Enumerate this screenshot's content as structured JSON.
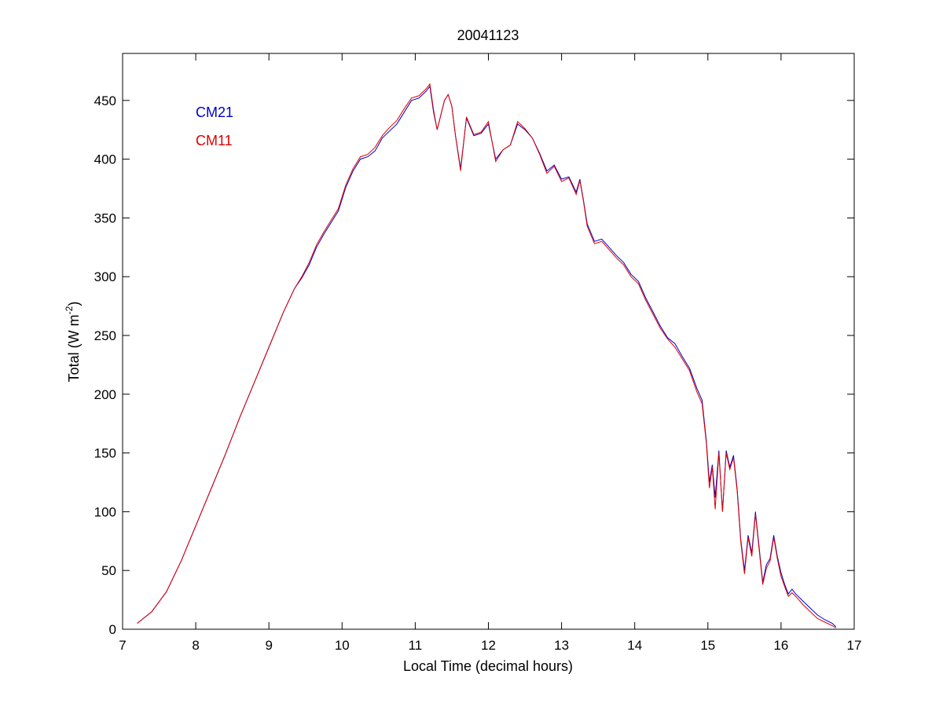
{
  "chart_data": {
    "type": "line",
    "title": "20041123",
    "xlabel": "Local Time (decimal hours)",
    "ylabel_main": "Total (W m",
    "ylabel_sup": "-2",
    "ylabel_close": ")",
    "xlim": [
      7,
      17
    ],
    "ylim": [
      0,
      490
    ],
    "x_ticks": [
      7,
      8,
      9,
      10,
      11,
      12,
      13,
      14,
      15,
      16,
      17
    ],
    "y_ticks": [
      0,
      50,
      100,
      150,
      200,
      250,
      300,
      350,
      400,
      450
    ],
    "grid": false,
    "legend_placement": "top-left",
    "series": [
      {
        "name": "CM21",
        "color": "#0000cc",
        "points": [
          [
            7.2,
            5
          ],
          [
            7.4,
            15
          ],
          [
            7.6,
            32
          ],
          [
            7.8,
            58
          ],
          [
            8.0,
            88
          ],
          [
            8.2,
            118
          ],
          [
            8.4,
            148
          ],
          [
            8.6,
            180
          ],
          [
            8.8,
            210
          ],
          [
            9.0,
            240
          ],
          [
            9.2,
            270
          ],
          [
            9.35,
            290
          ],
          [
            9.45,
            299
          ],
          [
            9.55,
            310
          ],
          [
            9.65,
            325
          ],
          [
            9.75,
            336
          ],
          [
            9.85,
            346
          ],
          [
            9.95,
            356
          ],
          [
            10.05,
            376
          ],
          [
            10.15,
            390
          ],
          [
            10.25,
            400
          ],
          [
            10.35,
            402
          ],
          [
            10.45,
            407
          ],
          [
            10.55,
            418
          ],
          [
            10.65,
            424
          ],
          [
            10.75,
            430
          ],
          [
            10.85,
            440
          ],
          [
            10.95,
            450
          ],
          [
            11.05,
            452
          ],
          [
            11.15,
            458
          ],
          [
            11.2,
            462
          ],
          [
            11.25,
            440
          ],
          [
            11.3,
            425
          ],
          [
            11.4,
            450
          ],
          [
            11.45,
            455
          ],
          [
            11.5,
            445
          ],
          [
            11.55,
            420
          ],
          [
            11.62,
            392
          ],
          [
            11.7,
            435
          ],
          [
            11.8,
            420
          ],
          [
            11.9,
            422
          ],
          [
            12.0,
            430
          ],
          [
            12.1,
            400
          ],
          [
            12.2,
            408
          ],
          [
            12.3,
            412
          ],
          [
            12.4,
            430
          ],
          [
            12.5,
            425
          ],
          [
            12.6,
            418
          ],
          [
            12.7,
            405
          ],
          [
            12.8,
            390
          ],
          [
            12.9,
            395
          ],
          [
            13.0,
            383
          ],
          [
            13.1,
            385
          ],
          [
            13.2,
            372
          ],
          [
            13.25,
            383
          ],
          [
            13.3,
            365
          ],
          [
            13.35,
            345
          ],
          [
            13.45,
            330
          ],
          [
            13.55,
            332
          ],
          [
            13.65,
            325
          ],
          [
            13.75,
            318
          ],
          [
            13.85,
            312
          ],
          [
            13.95,
            302
          ],
          [
            14.05,
            296
          ],
          [
            14.15,
            282
          ],
          [
            14.25,
            270
          ],
          [
            14.35,
            258
          ],
          [
            14.45,
            248
          ],
          [
            14.55,
            243
          ],
          [
            14.65,
            232
          ],
          [
            14.75,
            222
          ],
          [
            14.85,
            205
          ],
          [
            14.92,
            195
          ],
          [
            14.98,
            160
          ],
          [
            15.02,
            125
          ],
          [
            15.06,
            140
          ],
          [
            15.1,
            112
          ],
          [
            15.15,
            152
          ],
          [
            15.2,
            100
          ],
          [
            15.25,
            152
          ],
          [
            15.3,
            138
          ],
          [
            15.35,
            148
          ],
          [
            15.4,
            120
          ],
          [
            15.45,
            76
          ],
          [
            15.5,
            50
          ],
          [
            15.55,
            80
          ],
          [
            15.6,
            65
          ],
          [
            15.65,
            100
          ],
          [
            15.7,
            70
          ],
          [
            15.75,
            40
          ],
          [
            15.8,
            55
          ],
          [
            15.85,
            60
          ],
          [
            15.9,
            80
          ],
          [
            15.95,
            62
          ],
          [
            16.0,
            48
          ],
          [
            16.05,
            38
          ],
          [
            16.1,
            30
          ],
          [
            16.15,
            34
          ],
          [
            16.2,
            30
          ],
          [
            16.3,
            24
          ],
          [
            16.4,
            18
          ],
          [
            16.5,
            12
          ],
          [
            16.6,
            8
          ],
          [
            16.7,
            5
          ],
          [
            16.75,
            2
          ]
        ]
      },
      {
        "name": "CM11",
        "color": "#dd0000",
        "points": [
          [
            7.2,
            5
          ],
          [
            7.4,
            15
          ],
          [
            7.6,
            32
          ],
          [
            7.8,
            58
          ],
          [
            8.0,
            88
          ],
          [
            8.2,
            118
          ],
          [
            8.4,
            148
          ],
          [
            8.6,
            180
          ],
          [
            8.8,
            210
          ],
          [
            9.0,
            240
          ],
          [
            9.2,
            270
          ],
          [
            9.35,
            290
          ],
          [
            9.45,
            300
          ],
          [
            9.55,
            312
          ],
          [
            9.65,
            327
          ],
          [
            9.75,
            338
          ],
          [
            9.85,
            348
          ],
          [
            9.95,
            358
          ],
          [
            10.05,
            378
          ],
          [
            10.15,
            392
          ],
          [
            10.25,
            402
          ],
          [
            10.35,
            404
          ],
          [
            10.45,
            410
          ],
          [
            10.55,
            420
          ],
          [
            10.65,
            427
          ],
          [
            10.75,
            433
          ],
          [
            10.85,
            443
          ],
          [
            10.95,
            452
          ],
          [
            11.05,
            454
          ],
          [
            11.15,
            460
          ],
          [
            11.2,
            464
          ],
          [
            11.25,
            442
          ],
          [
            11.3,
            425
          ],
          [
            11.4,
            450
          ],
          [
            11.45,
            455
          ],
          [
            11.5,
            445
          ],
          [
            11.55,
            420
          ],
          [
            11.62,
            390
          ],
          [
            11.7,
            436
          ],
          [
            11.8,
            421
          ],
          [
            11.9,
            423
          ],
          [
            12.0,
            432
          ],
          [
            12.1,
            398
          ],
          [
            12.2,
            408
          ],
          [
            12.3,
            412
          ],
          [
            12.4,
            432
          ],
          [
            12.5,
            426
          ],
          [
            12.6,
            418
          ],
          [
            12.7,
            404
          ],
          [
            12.8,
            388
          ],
          [
            12.9,
            394
          ],
          [
            13.0,
            381
          ],
          [
            13.1,
            384
          ],
          [
            13.2,
            370
          ],
          [
            13.25,
            382
          ],
          [
            13.3,
            364
          ],
          [
            13.35,
            343
          ],
          [
            13.45,
            328
          ],
          [
            13.55,
            330
          ],
          [
            13.65,
            323
          ],
          [
            13.75,
            316
          ],
          [
            13.85,
            310
          ],
          [
            13.95,
            300
          ],
          [
            14.05,
            294
          ],
          [
            14.15,
            280
          ],
          [
            14.25,
            268
          ],
          [
            14.35,
            256
          ],
          [
            14.45,
            247
          ],
          [
            14.55,
            240
          ],
          [
            14.65,
            230
          ],
          [
            14.75,
            220
          ],
          [
            14.85,
            202
          ],
          [
            14.92,
            192
          ],
          [
            14.98,
            158
          ],
          [
            15.02,
            120
          ],
          [
            15.06,
            138
          ],
          [
            15.1,
            102
          ],
          [
            15.15,
            150
          ],
          [
            15.2,
            100
          ],
          [
            15.25,
            150
          ],
          [
            15.3,
            136
          ],
          [
            15.35,
            146
          ],
          [
            15.4,
            118
          ],
          [
            15.45,
            74
          ],
          [
            15.5,
            47
          ],
          [
            15.55,
            78
          ],
          [
            15.6,
            62
          ],
          [
            15.65,
            98
          ],
          [
            15.7,
            68
          ],
          [
            15.75,
            38
          ],
          [
            15.8,
            52
          ],
          [
            15.85,
            58
          ],
          [
            15.9,
            78
          ],
          [
            15.95,
            60
          ],
          [
            16.0,
            45
          ],
          [
            16.05,
            36
          ],
          [
            16.1,
            28
          ],
          [
            16.15,
            31
          ],
          [
            16.2,
            28
          ],
          [
            16.3,
            21
          ],
          [
            16.4,
            15
          ],
          [
            16.5,
            9
          ],
          [
            16.6,
            6
          ],
          [
            16.7,
            3
          ],
          [
            16.75,
            1
          ]
        ]
      }
    ]
  }
}
